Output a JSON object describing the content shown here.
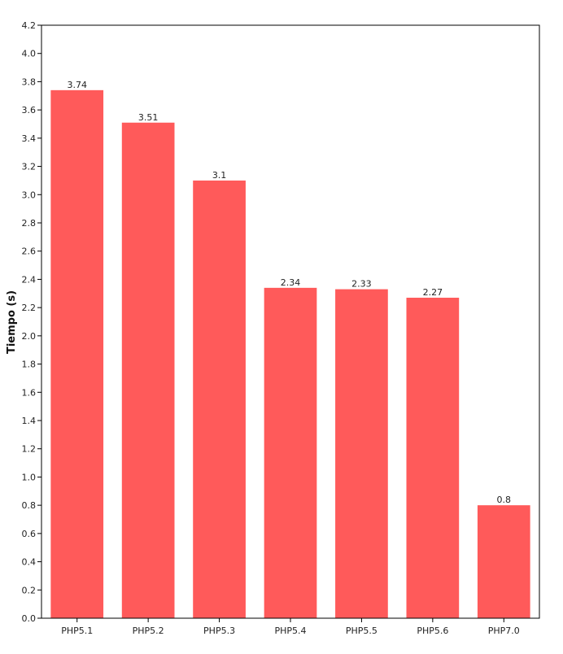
{
  "chart_data": {
    "type": "bar",
    "title": "",
    "xlabel": "",
    "ylabel": "Tiempo (s)",
    "categories": [
      "PHP5.1",
      "PHP5.2",
      "PHP5.3",
      "PHP5.4",
      "PHP5.5",
      "PHP5.6",
      "PHP7.0"
    ],
    "values": [
      3.74,
      3.51,
      3.1,
      2.34,
      2.33,
      2.27,
      0.8
    ],
    "data_labels": [
      "3.74",
      "3.51",
      "3.1",
      "2.34",
      "2.33",
      "2.27",
      "0.8"
    ],
    "ylim": [
      0,
      4.2
    ],
    "yticks": [
      "0.0",
      "0.2",
      "0.4",
      "0.6",
      "0.8",
      "1.0",
      "1.2",
      "1.4",
      "1.6",
      "1.8",
      "2.0",
      "2.2",
      "2.4",
      "2.6",
      "2.8",
      "3.0",
      "3.2",
      "3.4",
      "3.6",
      "3.8",
      "4.0",
      "4.2"
    ],
    "grid": false,
    "legend": "none",
    "colors": {
      "bar": "#ff5a5a",
      "axis": "#000000",
      "text": "#222222"
    }
  }
}
